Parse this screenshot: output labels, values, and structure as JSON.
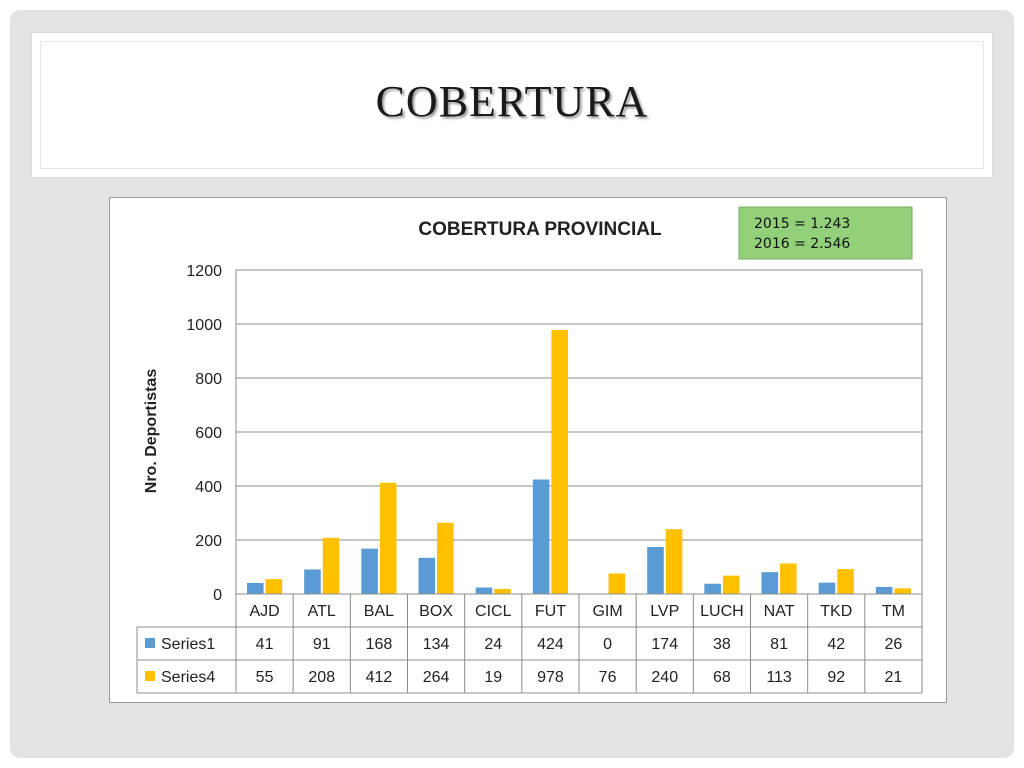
{
  "slide": {
    "title": "COBERTURA"
  },
  "note": {
    "line1": "2015 = 1.243",
    "line2": "2016 = 2.546",
    "bg": "#92d07a"
  },
  "chart_data": {
    "type": "bar",
    "title": "COBERTURA PROVINCIAL",
    "ylabel": "Nro. Deportistas",
    "xlabel": "",
    "ylim": [
      0,
      1200
    ],
    "yticks": [
      0,
      200,
      400,
      600,
      800,
      1000,
      1200
    ],
    "grid": true,
    "legend": "data-table",
    "categories": [
      "AJD",
      "ATL",
      "BAL",
      "BOX",
      "CICL",
      "FUT",
      "GIM",
      "LVP",
      "LUCH",
      "NAT",
      "TKD",
      "TM"
    ],
    "series": [
      {
        "name": "Series1",
        "color": "#5b9bd5",
        "values": [
          41,
          91,
          168,
          134,
          24,
          424,
          0,
          174,
          38,
          81,
          42,
          26
        ]
      },
      {
        "name": "Series4",
        "color": "#ffc000",
        "values": [
          55,
          208,
          412,
          264,
          19,
          978,
          76,
          240,
          68,
          113,
          92,
          21
        ]
      }
    ]
  }
}
